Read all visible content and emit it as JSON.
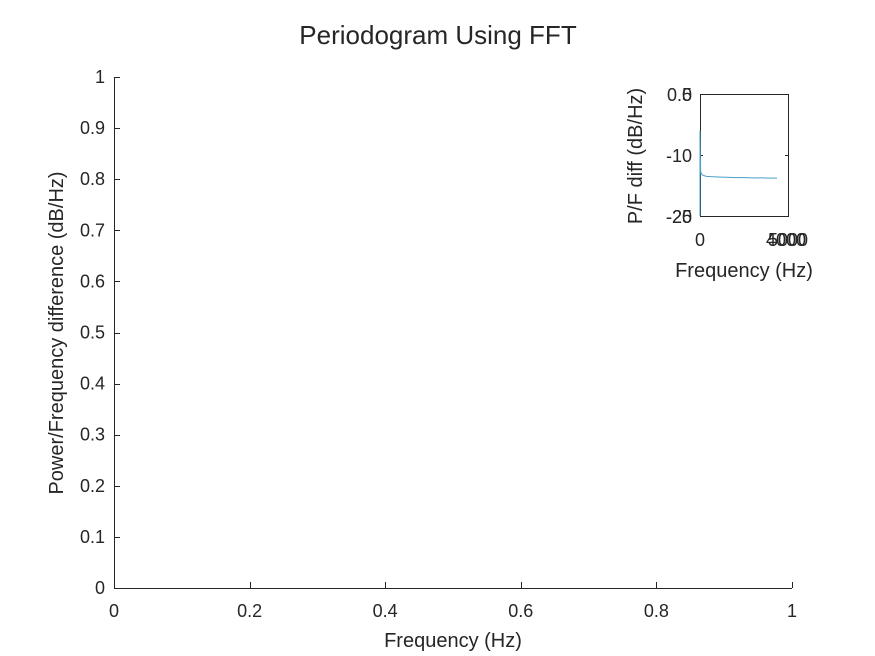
{
  "chart_data": [
    {
      "type": "line",
      "title": "Periodogram Using FFT",
      "xlabel": "Frequency (Hz)",
      "ylabel": "Power/Frequency difference (dB/Hz)",
      "xlim": [
        0,
        1
      ],
      "ylim": [
        0,
        1
      ],
      "xticks": [
        0,
        0.2,
        0.4,
        0.6,
        0.8,
        1
      ],
      "xtick_labels": [
        "0",
        "0.2",
        "0.4",
        "0.6",
        "0.8",
        "1"
      ],
      "yticks": [
        0,
        0.1,
        0.2,
        0.3,
        0.4,
        0.5,
        0.6,
        0.7,
        0.8,
        0.9,
        1
      ],
      "ytick_labels": [
        "0",
        "0.1",
        "0.2",
        "0.3",
        "0.4",
        "0.5",
        "0.6",
        "0.7",
        "0.8",
        "0.9",
        "1"
      ],
      "series": []
    },
    {
      "type": "line",
      "title": "",
      "xlabel": "Frequency (Hz)",
      "ylabel": "P/F diff (dB/Hz)",
      "xlim": [
        0,
        4000
      ],
      "ylim": [
        -20,
        0
      ],
      "xtick_labels": [
        "0",
        "4000",
        "5000"
      ],
      "ytick_labels": [
        "0.5",
        "0",
        "-10",
        "-20",
        "-25"
      ],
      "line_color": "#4a9fc7",
      "series": [
        {
          "x": [
            0,
            15,
            30,
            50,
            80,
            120,
            200,
            300,
            500,
            800,
            1200,
            1600,
            2000,
            2400,
            2800,
            3200,
            3500
          ],
          "y": [
            -6,
            -10,
            -12.6,
            -13,
            -13.1,
            -13.3,
            -13.4,
            -13.5,
            -13.55,
            -13.6,
            -13.65,
            -13.7,
            -13.7,
            -13.75,
            -13.75,
            -13.8,
            -13.8
          ]
        }
      ]
    }
  ],
  "colors": {
    "axis": "#262626",
    "line": "#4a9fc7",
    "background": "#ffffff"
  }
}
